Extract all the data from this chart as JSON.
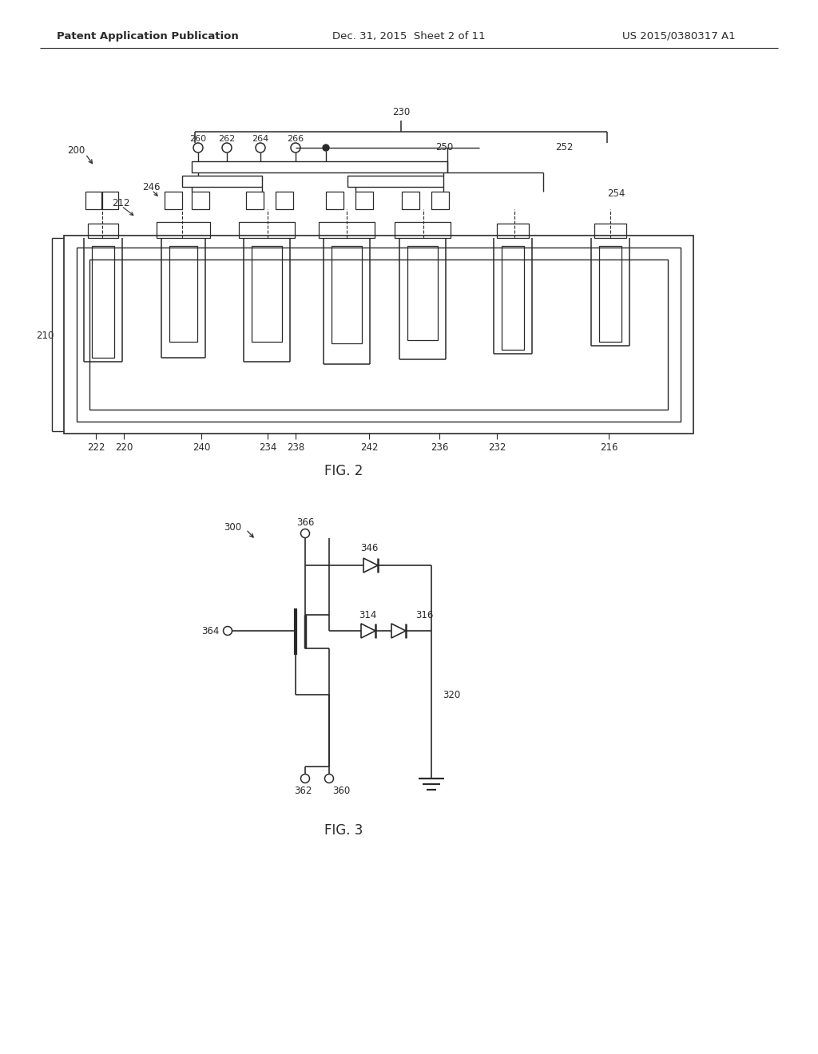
{
  "bg_color": "#ffffff",
  "header_left": "Patent Application Publication",
  "header_center": "Dec. 31, 2015  Sheet 2 of 11",
  "header_right": "US 2015/0380317 A1",
  "fig2_label": "FIG. 2",
  "fig3_label": "FIG. 3",
  "lc": "#2a2a2a",
  "tc": "#2a2a2a",
  "lfs": 8.5,
  "hfs": 9.5,
  "ffs": 12.0
}
